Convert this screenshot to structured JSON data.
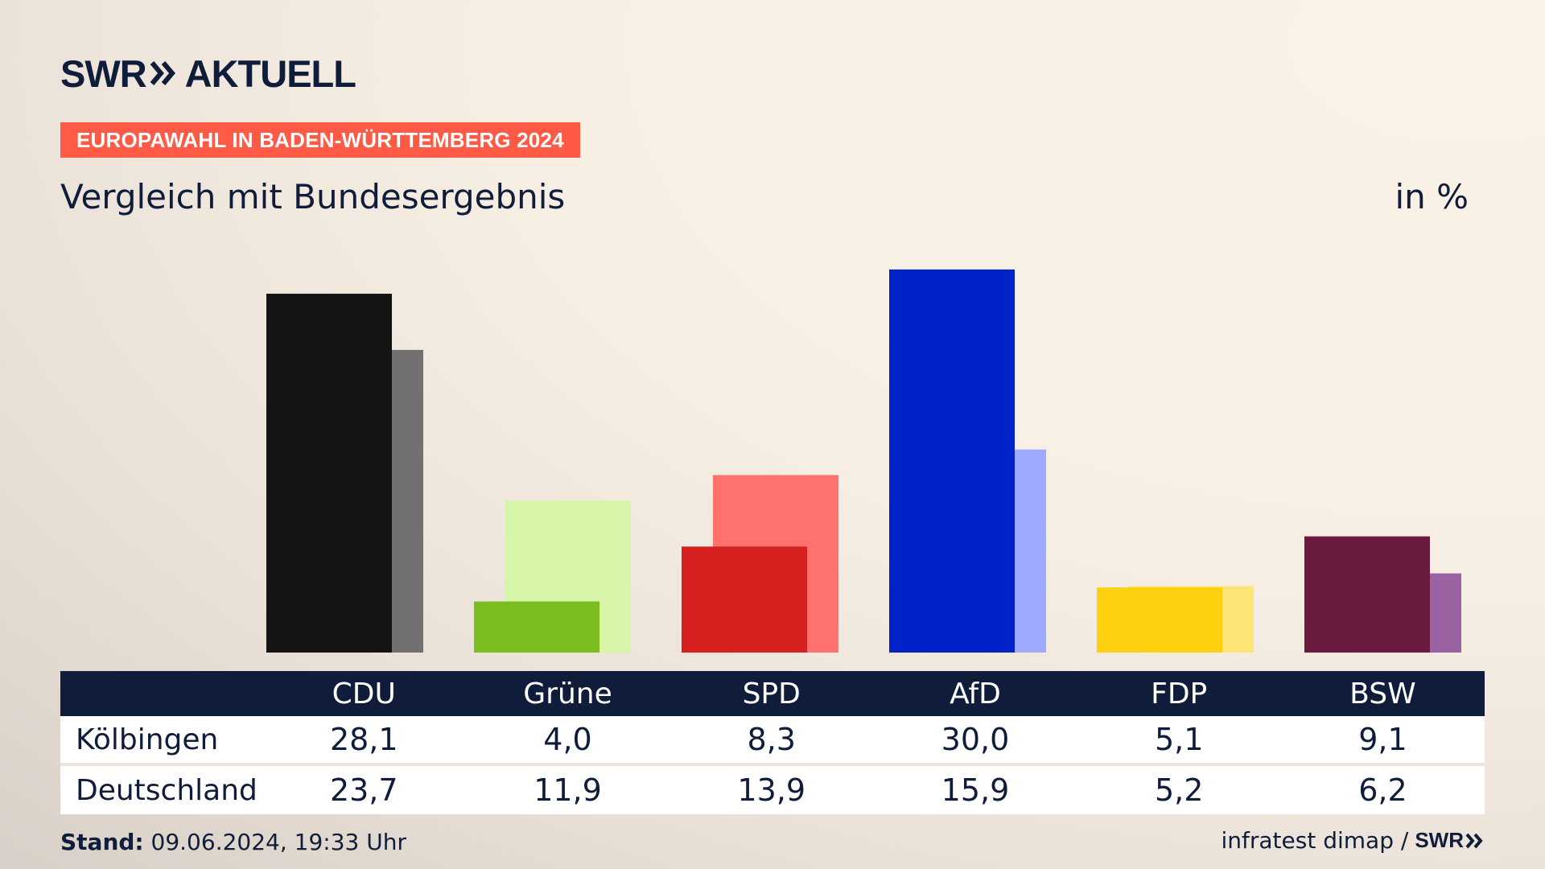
{
  "brand": {
    "name": "SWR",
    "section": "AKTUELL"
  },
  "tag": "EUROPAWAHL IN BADEN-WÜRTTEMBERG 2024",
  "subtitle": "Vergleich mit Bundesergebnis",
  "unit": "in %",
  "table": {
    "headers": [
      "CDU",
      "Grüne",
      "SPD",
      "AfD",
      "FDP",
      "BSW"
    ],
    "rows": [
      {
        "label": "Kölbingen",
        "values": [
          "28,1",
          "4,0",
          "8,3",
          "30,0",
          "5,1",
          "9,1"
        ]
      },
      {
        "label": "Deutschland",
        "values": [
          "23,7",
          "11,9",
          "13,9",
          "15,9",
          "5,2",
          "6,2"
        ]
      }
    ]
  },
  "footer": {
    "stand_label": "Stand:",
    "stand_value": "09.06.2024, 19:33 Uhr",
    "source": "infratest dimap /",
    "source_brand": "SWR"
  },
  "chart_data": {
    "type": "bar",
    "categories": [
      "CDU",
      "Grüne",
      "SPD",
      "AfD",
      "FDP",
      "BSW"
    ],
    "series": [
      {
        "name": "Kölbingen",
        "values": [
          28.1,
          4.0,
          8.3,
          30.0,
          5.1,
          9.1
        ],
        "colors": [
          "#141414",
          "#79be1e",
          "#d72020",
          "#0022c8",
          "#ffd010",
          "#6b1a40"
        ]
      },
      {
        "name": "Deutschland",
        "values": [
          23.7,
          11.9,
          13.9,
          15.9,
          5.2,
          6.2
        ],
        "colors": [
          "#727070",
          "#d6f5a8",
          "#ff716c",
          "#9daaff",
          "#ffe478",
          "#9a62a0"
        ]
      }
    ],
    "ylim": [
      0,
      30
    ]
  }
}
